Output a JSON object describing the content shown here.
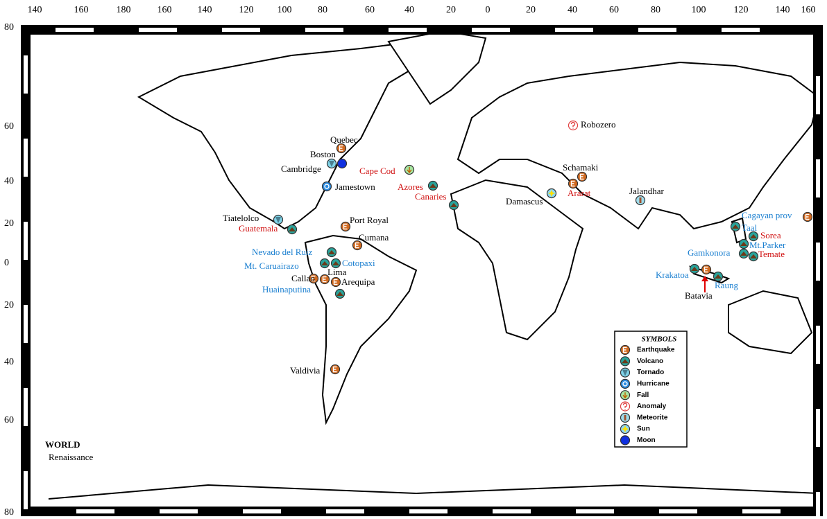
{
  "map": {
    "title": "WORLD",
    "subtitle": "Renaissance",
    "longitude_labels": [
      140,
      160,
      180,
      160,
      140,
      120,
      100,
      80,
      60,
      40,
      20,
      0,
      20,
      40,
      60,
      80,
      100,
      120,
      140,
      160
    ],
    "latitude_labels": [
      80,
      60,
      40,
      20,
      0,
      20,
      40,
      60,
      80
    ],
    "places": [
      "Quebec",
      "Boston",
      "Cambridge",
      "Cape Cod",
      "Jamestown",
      "Azores",
      "Canaries",
      "Robozero",
      "Schamaki",
      "Ararat",
      "Damascus",
      "Jalandhar",
      "Tiatelolco",
      "Guatemala",
      "Port Royal",
      "Cumana",
      "Nevado del Ruiz",
      "Mt. Caruairazo",
      "Cotopaxi",
      "Lima",
      "Callao",
      "Arequipa",
      "Huainaputina",
      "Valdivia",
      "Cagayan prov",
      "Taal",
      "Sorea",
      "Mt.Parker",
      "Gamkonora",
      "Temate",
      "Krakatoa",
      "Batavia",
      "Raung"
    ],
    "legend": {
      "title": "SYMBOLS",
      "items": [
        "Earthquake",
        "Volcano",
        "Tornado",
        "Hurricane",
        "Fall",
        "Anomaly",
        "Meteorite",
        "Sun",
        "Moon"
      ]
    }
  }
}
